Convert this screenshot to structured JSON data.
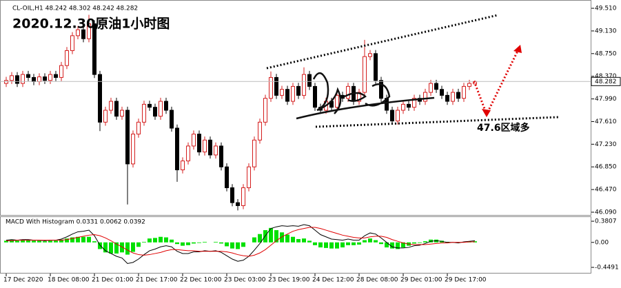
{
  "header": {
    "symbol_line": "CL-OIL,H1 48.242 48.302 48.242 48.282",
    "overlay_title": "2020.12.30原油1小时图",
    "annotation": "47.6区域多"
  },
  "chart_data": [
    {
      "type": "candlestick",
      "xticks": [
        {
          "value": 0,
          "label": "17 Dec 2020"
        },
        {
          "value": 8,
          "label": "18 Dec 08:00"
        },
        {
          "value": 16,
          "label": "21 Dec 01:00"
        },
        {
          "value": 24,
          "label": "21 Dec 17:00"
        },
        {
          "value": 32,
          "label": "22 Dec 10:00"
        },
        {
          "value": 40,
          "label": "23 Dec 03:00"
        },
        {
          "value": 48,
          "label": "23 Dec 19:00"
        },
        {
          "value": 56,
          "label": "24 Dec 12:00"
        },
        {
          "value": 64,
          "label": "28 Dec 08:00"
        },
        {
          "value": 72,
          "label": "29 Dec 01:00"
        },
        {
          "value": 80,
          "label": "29 Dec 17:00"
        }
      ],
      "open": [
        48.25,
        48.3,
        48.38,
        48.25,
        48.4,
        48.35,
        48.28,
        48.36,
        48.3,
        48.4,
        48.35,
        48.55,
        48.8,
        49.05,
        49.15,
        49.0,
        49.25,
        48.4,
        47.6,
        47.8,
        47.95,
        47.7,
        47.8,
        46.9,
        47.4,
        47.6,
        47.9,
        47.85,
        47.7,
        47.95,
        47.8,
        47.5,
        46.8,
        46.95,
        47.2,
        47.4,
        47.1,
        47.3,
        47.05,
        47.2,
        46.85,
        46.5,
        46.25,
        46.2,
        46.5,
        46.85,
        47.3,
        47.6,
        48.0,
        48.35,
        48.05,
        48.15,
        47.95,
        48.2,
        48.05,
        48.4,
        48.2,
        47.85,
        47.8,
        47.95,
        47.85,
        48.05,
        48.0,
        48.2,
        47.95,
        48.1,
        48.7,
        48.75,
        48.3,
        48.0,
        47.8,
        47.62,
        47.8,
        47.9,
        47.85,
        48.0,
        47.95,
        48.1,
        48.25,
        48.15,
        48.05,
        47.95,
        48.1,
        48.0,
        48.2,
        48.242
      ],
      "high": [
        48.36,
        48.44,
        48.44,
        48.46,
        48.46,
        48.41,
        48.42,
        48.42,
        48.46,
        48.46,
        48.61,
        48.86,
        49.11,
        49.21,
        49.21,
        49.4,
        49.31,
        48.46,
        47.86,
        48.01,
        48.01,
        47.86,
        47.86,
        47.46,
        47.66,
        47.96,
        47.96,
        47.91,
        48.01,
        48.01,
        47.86,
        47.56,
        47.01,
        47.26,
        47.46,
        47.46,
        47.36,
        47.36,
        47.26,
        47.26,
        46.91,
        46.56,
        46.31,
        46.56,
        46.91,
        47.36,
        47.66,
        48.06,
        48.45,
        48.41,
        48.21,
        48.21,
        48.26,
        48.26,
        48.52,
        48.46,
        48.26,
        47.91,
        48.01,
        48.01,
        48.11,
        48.11,
        48.26,
        48.26,
        48.16,
        48.98,
        48.81,
        48.81,
        48.36,
        48.06,
        47.86,
        47.86,
        47.96,
        47.96,
        48.06,
        48.06,
        48.16,
        48.31,
        48.31,
        48.21,
        48.11,
        48.16,
        48.16,
        48.26,
        48.31,
        48.302
      ],
      "low": [
        48.19,
        48.24,
        48.19,
        48.19,
        48.29,
        48.22,
        48.22,
        48.24,
        48.24,
        48.29,
        48.29,
        48.49,
        48.74,
        48.99,
        48.94,
        48.94,
        48.34,
        47.45,
        47.54,
        47.74,
        47.64,
        47.64,
        46.22,
        46.84,
        47.34,
        47.54,
        47.79,
        47.64,
        47.64,
        47.74,
        47.44,
        46.6,
        46.74,
        46.89,
        47.14,
        47.04,
        47.04,
        46.99,
        46.99,
        46.79,
        46.44,
        46.19,
        46.12,
        46.14,
        46.44,
        46.79,
        47.24,
        47.54,
        47.94,
        47.99,
        47.99,
        47.89,
        47.89,
        47.99,
        47.99,
        48.14,
        47.79,
        47.74,
        47.74,
        47.79,
        47.79,
        47.94,
        47.94,
        47.89,
        47.89,
        48.04,
        48.64,
        48.24,
        47.94,
        47.74,
        47.56,
        47.56,
        47.74,
        47.79,
        47.79,
        47.89,
        47.89,
        48.04,
        48.09,
        47.99,
        47.89,
        47.89,
        47.94,
        47.94,
        48.14,
        48.242
      ],
      "close": [
        48.3,
        48.38,
        48.25,
        48.4,
        48.35,
        48.28,
        48.36,
        48.3,
        48.4,
        48.35,
        48.55,
        48.8,
        49.05,
        49.15,
        49.0,
        49.25,
        48.4,
        47.6,
        47.8,
        47.95,
        47.7,
        47.8,
        46.9,
        47.4,
        47.6,
        47.9,
        47.85,
        47.7,
        47.95,
        47.8,
        47.5,
        46.8,
        46.95,
        47.2,
        47.4,
        47.1,
        47.3,
        47.05,
        47.2,
        46.85,
        46.5,
        46.25,
        46.2,
        46.5,
        46.85,
        47.3,
        47.6,
        48.0,
        48.35,
        48.05,
        48.15,
        47.95,
        48.2,
        48.05,
        48.4,
        48.2,
        47.85,
        47.8,
        47.95,
        47.85,
        48.05,
        48.0,
        48.2,
        47.95,
        48.1,
        48.7,
        48.75,
        48.3,
        48.0,
        47.8,
        47.62,
        47.8,
        47.9,
        47.85,
        48.0,
        47.95,
        48.1,
        48.25,
        48.15,
        48.05,
        47.95,
        48.1,
        48.0,
        48.2,
        48.25,
        48.282
      ],
      "up_color": "#d41c1c",
      "down_color": "#000000",
      "ylim": [
        46.032,
        49.626
      ],
      "yticks": [
        {
          "value": 49.51,
          "label": "49.510"
        },
        {
          "value": 49.13,
          "label": "49.130"
        },
        {
          "value": 48.75,
          "label": "48.750"
        },
        {
          "value": 48.37,
          "label": "48.370"
        },
        {
          "value": 47.99,
          "label": "47.990"
        },
        {
          "value": 47.61,
          "label": "47.610"
        },
        {
          "value": 47.23,
          "label": "47.230"
        },
        {
          "value": 46.85,
          "label": "46.850"
        },
        {
          "value": 46.47,
          "label": "46.470"
        },
        {
          "value": 46.09,
          "label": "46.090"
        }
      ]
    },
    {
      "type": "macd",
      "title": "MACD With Histogram 0.0331 0.0062 0.0392",
      "series": [
        {
          "kind": "histogram",
          "color": "#00e000",
          "values": [
            0.03,
            0.04,
            0.03,
            0.04,
            0.04,
            0.03,
            0.03,
            0.02,
            0.03,
            0.03,
            0.05,
            0.07,
            0.09,
            0.1,
            0.1,
            0.1,
            0.02,
            -0.12,
            -0.18,
            -0.2,
            -0.2,
            -0.18,
            -0.22,
            -0.17,
            -0.08,
            0.01,
            0.07,
            0.08,
            0.1,
            0.09,
            0.05,
            -0.03,
            -0.06,
            -0.05,
            -0.02,
            -0.01,
            0.01,
            0.0,
            0.01,
            -0.02,
            -0.07,
            -0.11,
            -0.12,
            -0.08,
            0.0,
            0.09,
            0.15,
            0.22,
            0.26,
            0.22,
            0.18,
            0.14,
            0.1,
            0.06,
            0.07,
            0.03,
            -0.05,
            -0.09,
            -0.1,
            -0.11,
            -0.11,
            -0.09,
            -0.05,
            -0.05,
            -0.04,
            0.04,
            0.07,
            0.04,
            -0.03,
            -0.09,
            -0.11,
            -0.12,
            -0.09,
            -0.06,
            -0.02,
            -0.01,
            0.02,
            0.05,
            0.05,
            0.03,
            0.01,
            0.0,
            -0.01,
            0.01,
            0.01,
            0.02
          ]
        },
        {
          "kind": "line",
          "color": "#000000",
          "values": [
            0.04,
            0.05,
            0.04,
            0.05,
            0.05,
            0.04,
            0.04,
            0.03,
            0.04,
            0.04,
            0.06,
            0.1,
            0.15,
            0.19,
            0.2,
            0.22,
            0.12,
            -0.05,
            -0.15,
            -0.2,
            -0.25,
            -0.28,
            -0.38,
            -0.36,
            -0.3,
            -0.22,
            -0.15,
            -0.12,
            -0.08,
            -0.06,
            -0.08,
            -0.16,
            -0.2,
            -0.2,
            -0.17,
            -0.17,
            -0.15,
            -0.16,
            -0.15,
            -0.18,
            -0.24,
            -0.3,
            -0.34,
            -0.32,
            -0.25,
            -0.14,
            -0.02,
            0.12,
            0.25,
            0.28,
            0.3,
            0.29,
            0.3,
            0.29,
            0.32,
            0.3,
            0.22,
            0.14,
            0.1,
            0.06,
            0.05,
            0.04,
            0.06,
            0.04,
            0.04,
            0.12,
            0.17,
            0.15,
            0.08,
            0.0,
            -0.08,
            -0.1,
            -0.1,
            -0.09,
            -0.06,
            -0.05,
            -0.02,
            0.02,
            0.03,
            0.02,
            0.0,
            0.0,
            -0.01,
            0.01,
            0.02,
            0.03
          ]
        },
        {
          "kind": "line",
          "color": "#e00000",
          "values": [
            0.03,
            0.03,
            0.04,
            0.04,
            0.04,
            0.04,
            0.04,
            0.04,
            0.04,
            0.04,
            0.04,
            0.05,
            0.07,
            0.09,
            0.11,
            0.13,
            0.14,
            0.12,
            0.08,
            0.03,
            -0.03,
            -0.08,
            -0.14,
            -0.19,
            -0.22,
            -0.23,
            -0.22,
            -0.2,
            -0.18,
            -0.15,
            -0.13,
            -0.13,
            -0.14,
            -0.15,
            -0.15,
            -0.16,
            -0.16,
            -0.16,
            -0.16,
            -0.16,
            -0.17,
            -0.19,
            -0.22,
            -0.24,
            -0.25,
            -0.23,
            -0.19,
            -0.13,
            -0.05,
            0.03,
            0.1,
            0.15,
            0.2,
            0.23,
            0.25,
            0.27,
            0.27,
            0.25,
            0.22,
            0.19,
            0.16,
            0.13,
            0.11,
            0.09,
            0.08,
            0.08,
            0.1,
            0.11,
            0.11,
            0.09,
            0.05,
            0.02,
            -0.01,
            -0.03,
            -0.04,
            -0.04,
            -0.04,
            -0.03,
            -0.02,
            -0.01,
            -0.01,
            0.0,
            0.0,
            0.0,
            0.01,
            0.01
          ]
        }
      ],
      "ylim": [
        -0.56,
        0.456
      ],
      "yticks": [
        0.3807,
        {
          "value": 0,
          "label": "0.00"
        },
        -0.4491
      ]
    }
  ]
}
